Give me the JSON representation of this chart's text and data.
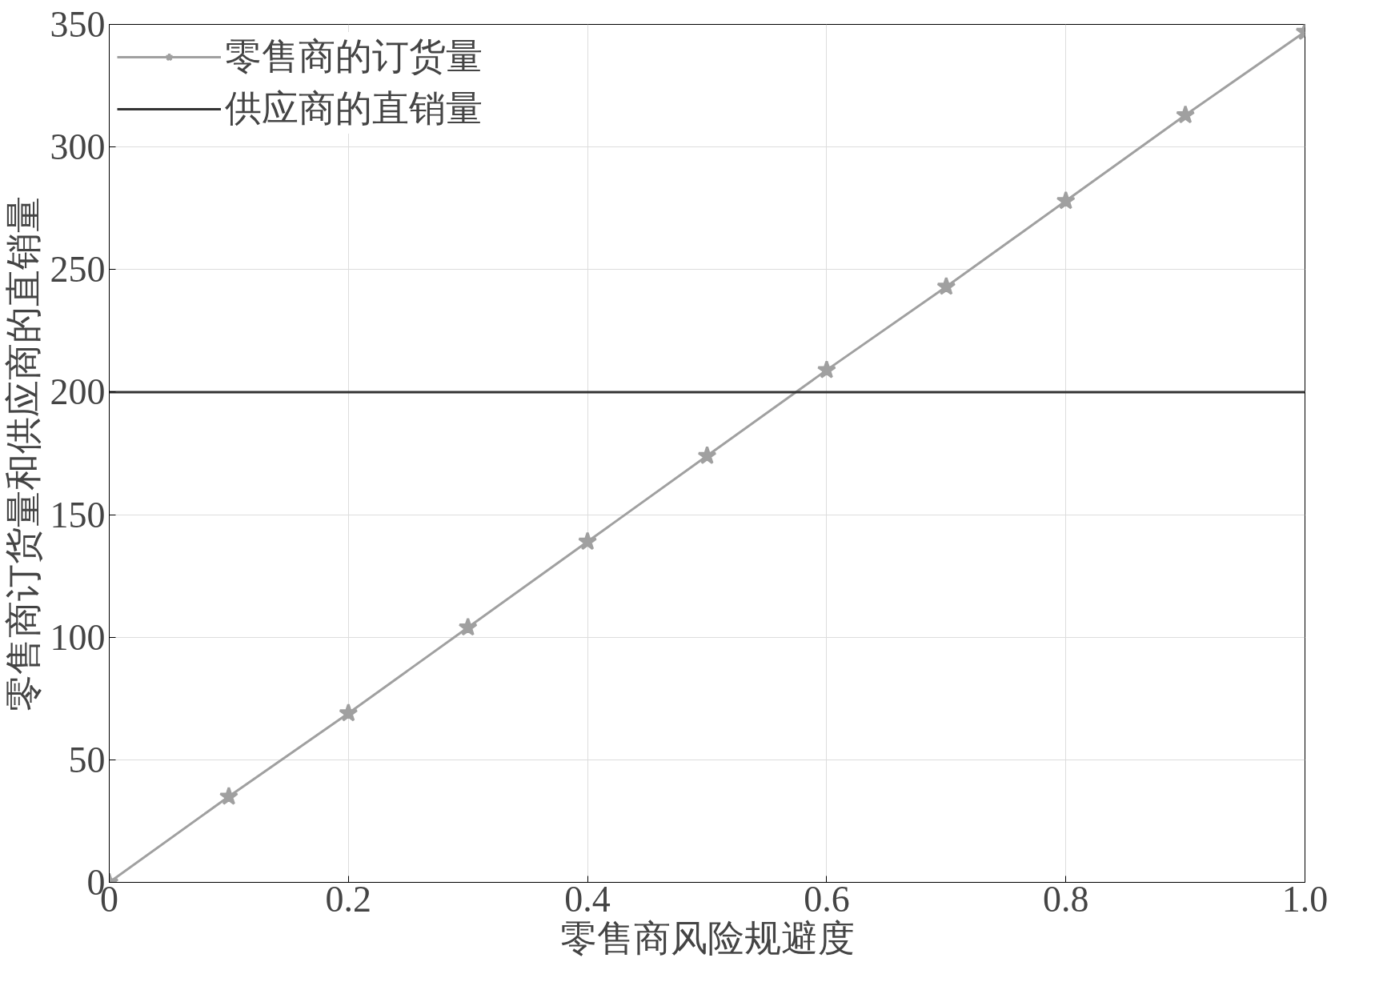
{
  "chart_data": {
    "type": "line",
    "xlabel": "零售商风险规避度",
    "ylabel": "零售商订货量和供应商的直销量",
    "x": [
      0,
      0.1,
      0.2,
      0.3,
      0.4,
      0.5,
      0.6,
      0.7,
      0.8,
      0.9,
      1.0
    ],
    "series": [
      {
        "name": "零售商的订货量",
        "color": "#a0a0a0",
        "marker": "star",
        "values": [
          0,
          35,
          69,
          104,
          139,
          174,
          209,
          243,
          278,
          313,
          347
        ]
      },
      {
        "name": "供应商的直销量",
        "color": "#333333",
        "marker": "none",
        "x": [
          0,
          1
        ],
        "values": [
          200,
          200
        ]
      }
    ],
    "xlim": [
      0,
      1
    ],
    "ylim": [
      0,
      350
    ],
    "xticks": [
      0,
      0.2,
      0.4,
      0.6,
      0.8,
      {
        "value": 1,
        "label": "1.0"
      }
    ],
    "yticks": [
      0,
      50,
      100,
      150,
      200,
      250,
      300,
      350
    ],
    "grid": true,
    "legend": "top left",
    "line_style": "solid"
  }
}
